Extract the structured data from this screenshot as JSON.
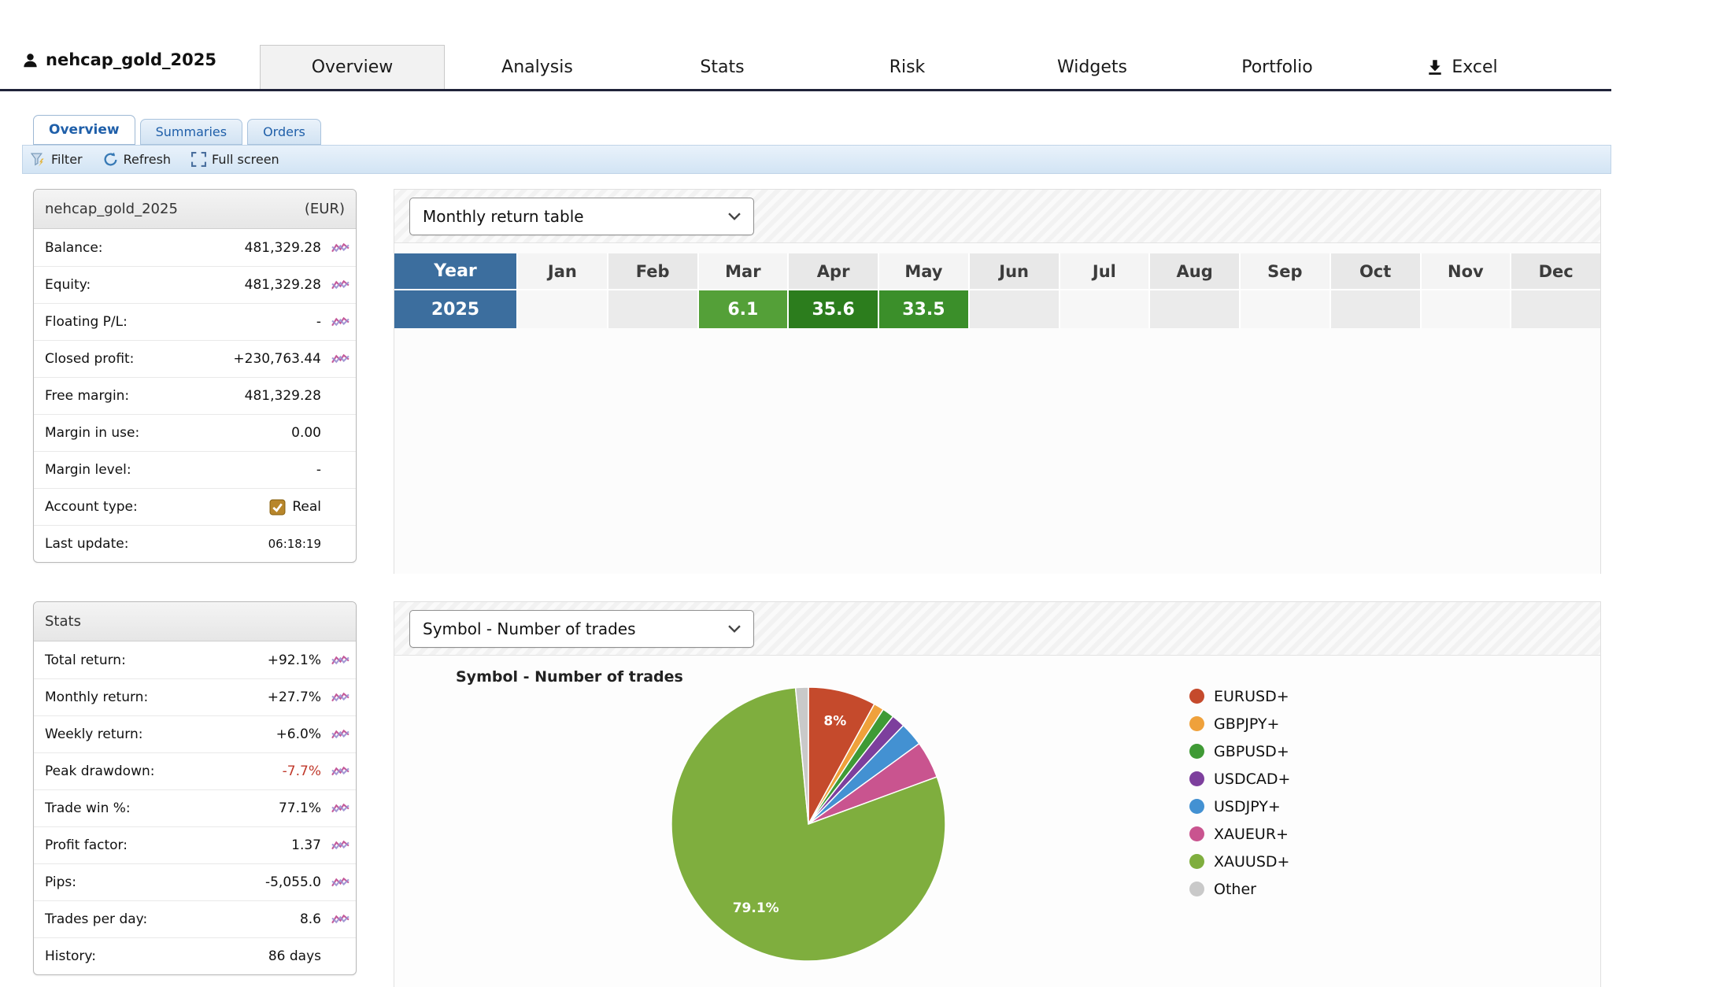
{
  "header": {
    "account_name": "nehcap_gold_2025",
    "tabs": [
      "Overview",
      "Analysis",
      "Stats",
      "Risk",
      "Widgets",
      "Portfolio",
      "Excel"
    ],
    "active_tab": "Overview"
  },
  "subtabs": {
    "items": [
      "Overview",
      "Summaries",
      "Orders"
    ],
    "active": "Overview"
  },
  "toolbar": {
    "filter_label": "Filter",
    "refresh_label": "Refresh",
    "fullscreen_label": "Full screen"
  },
  "account_panel": {
    "title": "nehcap_gold_2025",
    "currency": "(EUR)",
    "rows": [
      {
        "label": "Balance:",
        "value": "481,329.28",
        "has_chart": true
      },
      {
        "label": "Equity:",
        "value": "481,329.28",
        "has_chart": true
      },
      {
        "label": "Floating P/L:",
        "value": "-",
        "has_chart": true
      },
      {
        "label": "Closed profit:",
        "value": "+230,763.44",
        "has_chart": true
      },
      {
        "label": "Free margin:",
        "value": "481,329.28",
        "has_chart": false
      },
      {
        "label": "Margin in use:",
        "value": "0.00",
        "has_chart": false
      },
      {
        "label": "Margin level:",
        "value": "-",
        "has_chart": false
      },
      {
        "label": "Account type:",
        "value": "Real",
        "has_chart": false,
        "checkbox": true
      },
      {
        "label": "Last update:",
        "value": "06:18:19",
        "has_chart": false
      }
    ]
  },
  "stats_panel": {
    "title": "Stats",
    "rows": [
      {
        "label": "Total return:",
        "value": "+92.1%",
        "has_chart": true
      },
      {
        "label": "Monthly return:",
        "value": "+27.7%",
        "has_chart": true
      },
      {
        "label": "Weekly return:",
        "value": "+6.0%",
        "has_chart": true
      },
      {
        "label": "Peak drawdown:",
        "value": "-7.7%",
        "has_chart": true,
        "color": "#c0392b"
      },
      {
        "label": "Trade win %:",
        "value": "77.1%",
        "has_chart": true
      },
      {
        "label": "Profit factor:",
        "value": "1.37",
        "has_chart": true
      },
      {
        "label": "Pips:",
        "value": "-5,055.0",
        "has_chart": true
      },
      {
        "label": "Trades per day:",
        "value": "8.6",
        "has_chart": true
      },
      {
        "label": "History:",
        "value": "86 days",
        "has_chart": false
      }
    ]
  },
  "monthly_panel": {
    "dropdown_value": "Monthly return table",
    "chart_data": {
      "type": "table",
      "title": "Monthly return table",
      "columns": [
        "Year",
        "Jan",
        "Feb",
        "Mar",
        "Apr",
        "May",
        "Jun",
        "Jul",
        "Aug",
        "Sep",
        "Oct",
        "Nov",
        "Dec"
      ],
      "rows": [
        {
          "year": "2025",
          "values": [
            "",
            "",
            "6.1",
            "35.6",
            "33.5",
            "",
            "",
            "",
            "",
            "",
            "",
            ""
          ],
          "cell_colors": [
            "",
            "",
            "#54a038",
            "#2c7d1d",
            "#3b8f2a",
            "",
            "",
            "",
            "",
            "",
            "",
            ""
          ]
        }
      ],
      "header_color": "#3c6e9e"
    }
  },
  "symbol_panel": {
    "dropdown_value": "Symbol - Number of trades",
    "chart_data": {
      "type": "pie",
      "title": "Symbol - Number of trades",
      "legend_position": "right",
      "slices": [
        {
          "name": "EURUSD+",
          "value": 8.0,
          "color": "#c54a2c",
          "label": "8%",
          "label_r": 0.78
        },
        {
          "name": "GBPJPY+",
          "value": 1.2,
          "color": "#efa13b"
        },
        {
          "name": "GBPUSD+",
          "value": 1.4,
          "color": "#3f9a35"
        },
        {
          "name": "USDCAD+",
          "value": 1.6,
          "color": "#7d3f9d"
        },
        {
          "name": "USDJPY+",
          "value": 2.8,
          "color": "#4391d2"
        },
        {
          "name": "XAUEUR+",
          "value": 4.4,
          "color": "#c9548f"
        },
        {
          "name": "XAUUSD+",
          "value": 79.1,
          "color": "#7fae3e",
          "label": "79.1%",
          "label_r": 0.72
        },
        {
          "name": "Other",
          "value": 1.5,
          "color": "#c9c9c9"
        }
      ]
    }
  },
  "icons": {
    "account": "user-icon",
    "excel_tab": "download-icon",
    "filter": "filter-funnel-icon",
    "refresh": "refresh-icon",
    "full_screen": "fullscreen-corners-icon",
    "row_chart": "sparkline-chart-icon",
    "account_type": "checked-checkbox-icon",
    "dropdown": "chevron-down-icon"
  }
}
